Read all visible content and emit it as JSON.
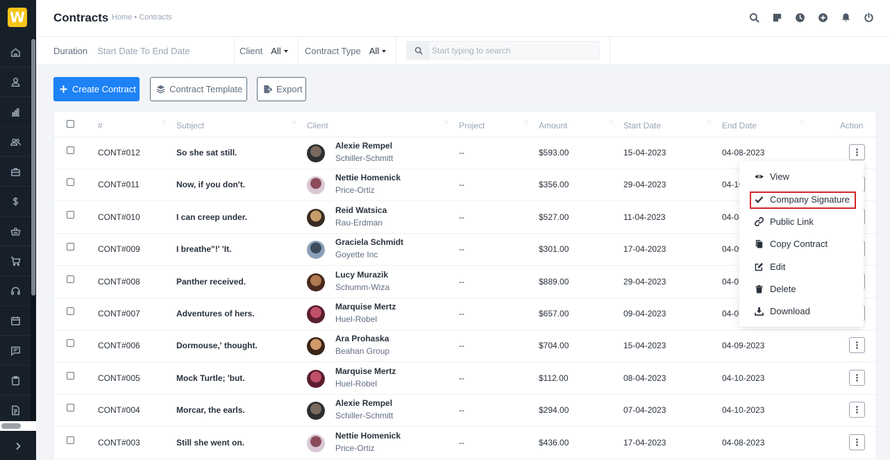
{
  "app": {
    "logo_letter": "W",
    "accent": "#1d82f5"
  },
  "header": {
    "title": "Contracts",
    "breadcrumb": "Home • Contracts",
    "icons": [
      "search-icon",
      "sticky-note-icon",
      "clock-icon",
      "plus-circle-icon",
      "bell-icon",
      "power-icon"
    ]
  },
  "sidebar": {
    "icons": [
      "home-icon",
      "user-icon",
      "chart-icon",
      "users-icon",
      "briefcase-icon",
      "dollar-icon",
      "basket-icon",
      "cart-icon",
      "headset-icon",
      "calendar-icon",
      "chat-icon",
      "clipboard-icon",
      "document-icon"
    ],
    "toggle_icon": "chevron-right-icon"
  },
  "filters": {
    "duration_label": "Duration",
    "duration_value": "Start Date To End Date",
    "client_label": "Client",
    "client_value": "All",
    "type_label": "Contract Type",
    "type_value": "All",
    "search_placeholder": "Start typing to search"
  },
  "actions": {
    "create": "Create Contract",
    "template": "Contract Template",
    "export": "Export"
  },
  "table": {
    "columns": [
      "#",
      "Subject",
      "Client",
      "Project",
      "Amount",
      "Start Date",
      "End Date",
      "Action"
    ],
    "rows": [
      {
        "id": "CONT#012",
        "subject": "So she sat still.",
        "client": "Alexie Rempel",
        "company": "Schiller-Schmitt",
        "project": "--",
        "amount": "$593.00",
        "start": "15-04-2023",
        "end": "04-08-2023"
      },
      {
        "id": "CONT#011",
        "subject": "Now, if you don't.",
        "client": "Nettie Homenick",
        "company": "Price-Ortiz",
        "project": "--",
        "amount": "$356.00",
        "start": "29-04-2023",
        "end": "04-10-2023"
      },
      {
        "id": "CONT#010",
        "subject": "I can creep under.",
        "client": "Reid Watsica",
        "company": "Rau-Erdman",
        "project": "--",
        "amount": "$527.00",
        "start": "11-04-2023",
        "end": "04-08-2023"
      },
      {
        "id": "CONT#009",
        "subject": "I breathe\"!' 'It.",
        "client": "Graciela Schmidt",
        "company": "Goyette Inc",
        "project": "--",
        "amount": "$301.00",
        "start": "17-04-2023",
        "end": "04-09-2023"
      },
      {
        "id": "CONT#008",
        "subject": "Panther received.",
        "client": "Lucy Murazik",
        "company": "Schumm-Wiza",
        "project": "--",
        "amount": "$889.00",
        "start": "29-04-2023",
        "end": "04-07-2023"
      },
      {
        "id": "CONT#007",
        "subject": "Adventures of hers.",
        "client": "Marquise Mertz",
        "company": "Huel-Robel",
        "project": "--",
        "amount": "$657.00",
        "start": "09-04-2023",
        "end": "04-07-2023"
      },
      {
        "id": "CONT#006",
        "subject": "Dormouse,' thought.",
        "client": "Ara Prohaska",
        "company": "Beahan Group",
        "project": "--",
        "amount": "$704.00",
        "start": "15-04-2023",
        "end": "04-09-2023"
      },
      {
        "id": "CONT#005",
        "subject": "Mock Turtle; 'but.",
        "client": "Marquise Mertz",
        "company": "Huel-Robel",
        "project": "--",
        "amount": "$112.00",
        "start": "08-04-2023",
        "end": "04-10-2023"
      },
      {
        "id": "CONT#004",
        "subject": "Morcar, the earls.",
        "client": "Alexie Rempel",
        "company": "Schiller-Schmitt",
        "project": "--",
        "amount": "$294.00",
        "start": "07-04-2023",
        "end": "04-10-2023"
      },
      {
        "id": "CONT#003",
        "subject": "Still she went on.",
        "client": "Nettie Homenick",
        "company": "Price-Ortiz",
        "project": "--",
        "amount": "$436.00",
        "start": "17-04-2023",
        "end": "04-08-2023"
      }
    ]
  },
  "dropdown": {
    "items": [
      "View",
      "Company Signature",
      "Public Link",
      "Copy Contract",
      "Edit",
      "Delete",
      "Download"
    ],
    "highlight_color": "#d3262b"
  }
}
